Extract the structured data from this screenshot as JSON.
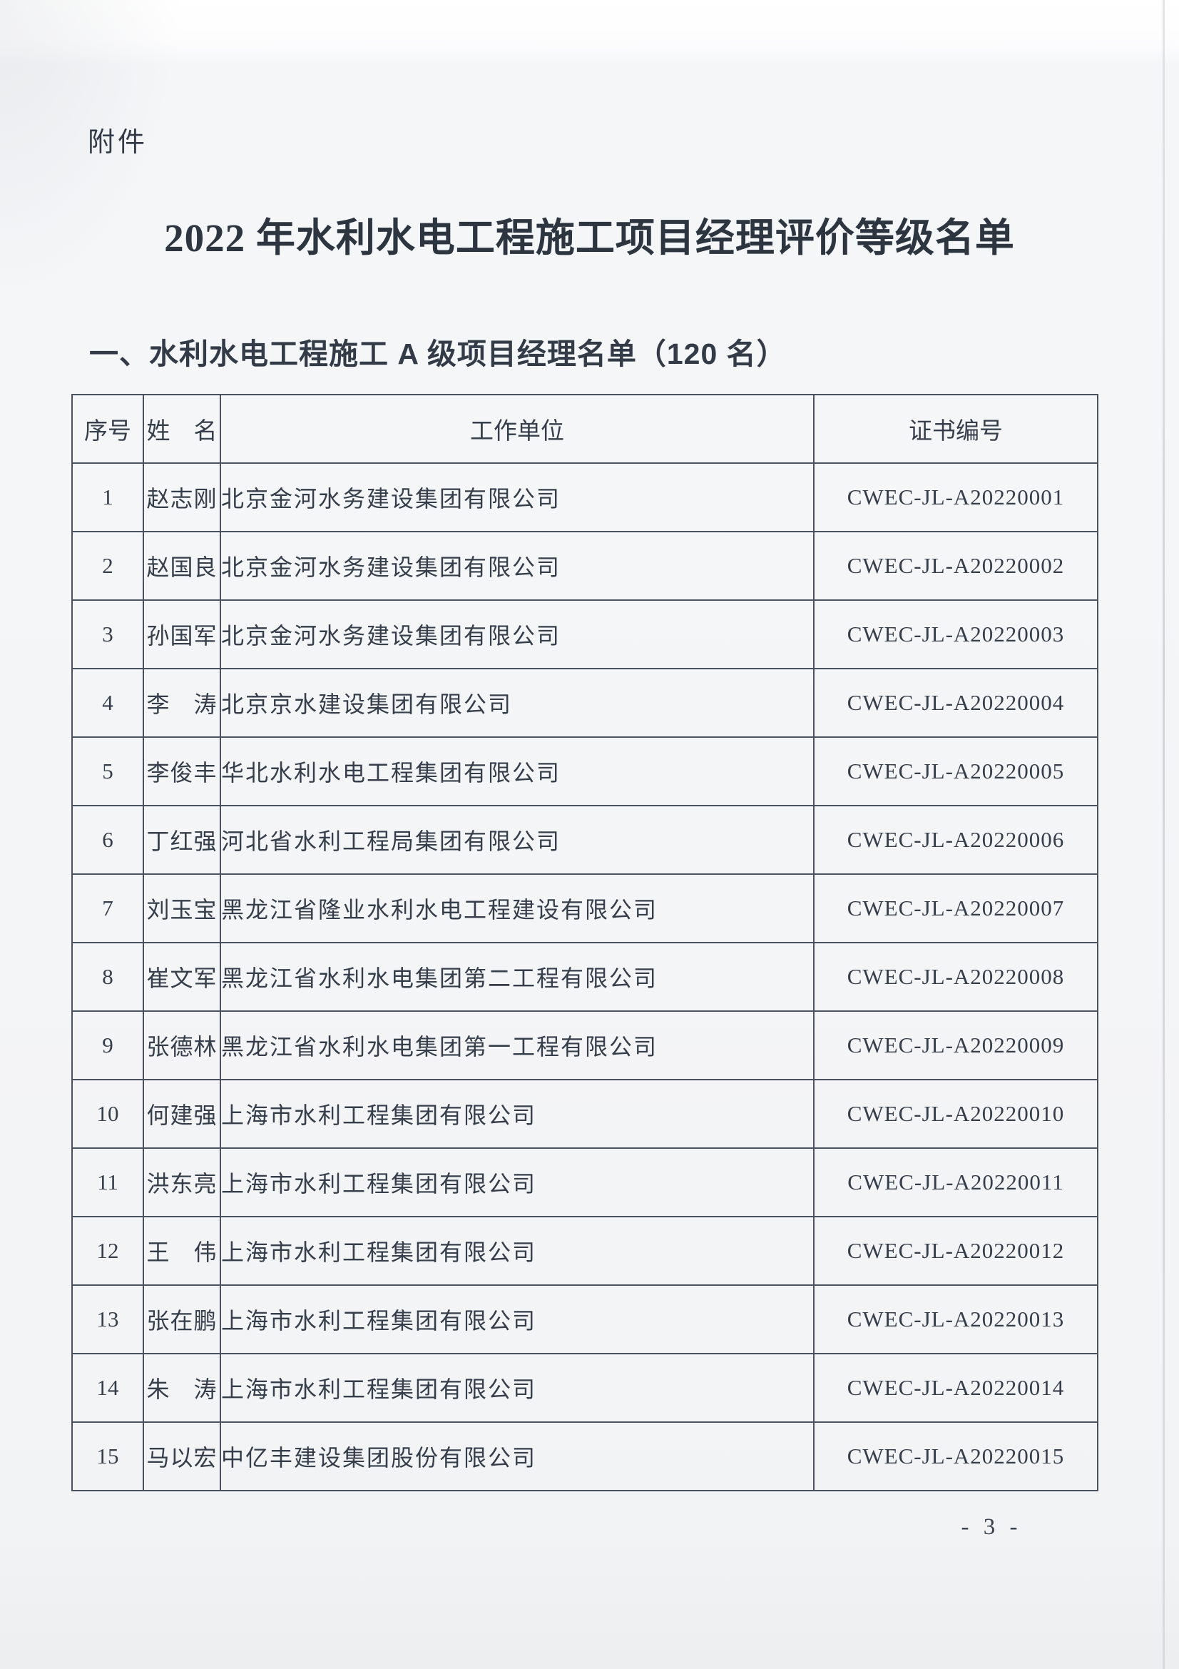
{
  "page": {
    "attachment_label": "附件",
    "title": "2022 年水利水电工程施工项目经理评价等级名单",
    "section_heading": "一、水利水电工程施工 A 级项目经理名单（120 名）",
    "page_number": "- 3 -"
  },
  "table": {
    "headers": [
      "序号",
      "姓　名",
      "工作单位",
      "证书编号"
    ],
    "rows": [
      {
        "no": "1",
        "name": "赵志刚",
        "unit": "北京金河水务建设集团有限公司",
        "cert": "CWEC-JL-A20220001"
      },
      {
        "no": "2",
        "name": "赵国良",
        "unit": "北京金河水务建设集团有限公司",
        "cert": "CWEC-JL-A20220002"
      },
      {
        "no": "3",
        "name": "孙国军",
        "unit": "北京金河水务建设集团有限公司",
        "cert": "CWEC-JL-A20220003"
      },
      {
        "no": "4",
        "name": "李　涛",
        "unit": "北京京水建设集团有限公司",
        "cert": "CWEC-JL-A20220004"
      },
      {
        "no": "5",
        "name": "李俊丰",
        "unit": "华北水利水电工程集团有限公司",
        "cert": "CWEC-JL-A20220005"
      },
      {
        "no": "6",
        "name": "丁红强",
        "unit": "河北省水利工程局集团有限公司",
        "cert": "CWEC-JL-A20220006"
      },
      {
        "no": "7",
        "name": "刘玉宝",
        "unit": "黑龙江省隆业水利水电工程建设有限公司",
        "cert": "CWEC-JL-A20220007"
      },
      {
        "no": "8",
        "name": "崔文军",
        "unit": "黑龙江省水利水电集团第二工程有限公司",
        "cert": "CWEC-JL-A20220008"
      },
      {
        "no": "9",
        "name": "张德林",
        "unit": "黑龙江省水利水电集团第一工程有限公司",
        "cert": "CWEC-JL-A20220009"
      },
      {
        "no": "10",
        "name": "何建强",
        "unit": "上海市水利工程集团有限公司",
        "cert": "CWEC-JL-A20220010"
      },
      {
        "no": "11",
        "name": "洪东亮",
        "unit": "上海市水利工程集团有限公司",
        "cert": "CWEC-JL-A20220011"
      },
      {
        "no": "12",
        "name": "王　伟",
        "unit": "上海市水利工程集团有限公司",
        "cert": "CWEC-JL-A20220012"
      },
      {
        "no": "13",
        "name": "张在鹏",
        "unit": "上海市水利工程集团有限公司",
        "cert": "CWEC-JL-A20220013"
      },
      {
        "no": "14",
        "name": "朱　涛",
        "unit": "上海市水利工程集团有限公司",
        "cert": "CWEC-JL-A20220014"
      },
      {
        "no": "15",
        "name": "马以宏",
        "unit": "中亿丰建设集团股份有限公司",
        "cert": "CWEC-JL-A20220015"
      }
    ]
  }
}
